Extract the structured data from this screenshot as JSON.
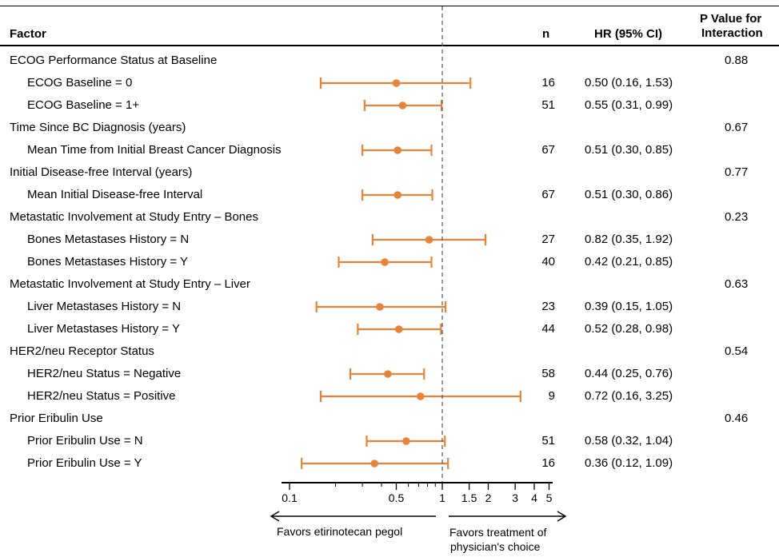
{
  "header": {
    "factor": "Factor",
    "n": "n",
    "hr": "HR (95% CI)",
    "p_line1": "P Value for",
    "p_line2": "Interaction"
  },
  "chart_data": {
    "type": "forest",
    "x_scale": "log",
    "reference_line": 1,
    "xlim": [
      0.1,
      5
    ],
    "x_ticks": [
      0.1,
      0.5,
      1,
      1.5,
      2,
      3,
      4,
      5
    ],
    "x_tick_labels": [
      "0.1",
      "0.5",
      "1",
      "1.5",
      "2",
      "3",
      "4",
      "5"
    ],
    "minor_ticks": [
      0.2,
      0.3,
      0.4,
      0.6,
      0.7,
      0.8,
      0.9
    ],
    "color": "#E8833A",
    "favors_left": "Favors etirinotecan pegol",
    "favors_right_line1": "Favors treatment of",
    "favors_right_line2": "physician's choice",
    "rows": [
      {
        "kind": "group",
        "label": "ECOG Performance Status at Baseline",
        "p": "0.88"
      },
      {
        "kind": "item",
        "label": "ECOG Baseline = 0",
        "n": "16",
        "hr_text": "0.50 (0.16, 1.53)",
        "hr": 0.5,
        "lo": 0.16,
        "hi": 1.53
      },
      {
        "kind": "item",
        "label": "ECOG Baseline = 1+",
        "n": "51",
        "hr_text": "0.55 (0.31, 0.99)",
        "hr": 0.55,
        "lo": 0.31,
        "hi": 0.99
      },
      {
        "kind": "group",
        "label": "Time Since BC Diagnosis (years)",
        "p": "0.67"
      },
      {
        "kind": "item",
        "label": "Mean Time from Initial Breast Cancer Diagnosis",
        "n": "67",
        "hr_text": "0.51 (0.30, 0.85)",
        "hr": 0.51,
        "lo": 0.3,
        "hi": 0.85
      },
      {
        "kind": "group",
        "label": "Initial Disease-free Interval (years)",
        "p": "0.77"
      },
      {
        "kind": "item",
        "label": "Mean Initial Disease-free Interval",
        "n": "67",
        "hr_text": "0.51 (0.30, 0.86)",
        "hr": 0.51,
        "lo": 0.3,
        "hi": 0.86
      },
      {
        "kind": "group",
        "label": "Metastatic Involvement at Study Entry – Bones",
        "p": "0.23"
      },
      {
        "kind": "item",
        "label": "Bones Metastases History = N",
        "n": "27",
        "hr_text": "0.82 (0.35, 1.92)",
        "hr": 0.82,
        "lo": 0.35,
        "hi": 1.92
      },
      {
        "kind": "item",
        "label": "Bones Metastases History = Y",
        "n": "40",
        "hr_text": "0.42 (0.21, 0.85)",
        "hr": 0.42,
        "lo": 0.21,
        "hi": 0.85
      },
      {
        "kind": "group",
        "label": "Metastatic Involvement at Study Entry – Liver",
        "p": "0.63"
      },
      {
        "kind": "item",
        "label": "Liver Metastases History = N",
        "n": "23",
        "hr_text": "0.39 (0.15, 1.05)",
        "hr": 0.39,
        "lo": 0.15,
        "hi": 1.05
      },
      {
        "kind": "item",
        "label": "Liver Metastases History = Y",
        "n": "44",
        "hr_text": "0.52 (0.28, 0.98)",
        "hr": 0.52,
        "lo": 0.28,
        "hi": 0.98
      },
      {
        "kind": "group",
        "label": "HER2/neu Receptor Status",
        "p": "0.54"
      },
      {
        "kind": "item",
        "label": "HER2/neu Status = Negative",
        "n": "58",
        "hr_text": "0.44 (0.25, 0.76)",
        "hr": 0.44,
        "lo": 0.25,
        "hi": 0.76
      },
      {
        "kind": "item",
        "label": "HER2/neu Status = Positive",
        "n": "9",
        "hr_text": "0.72 (0.16, 3.25)",
        "hr": 0.72,
        "lo": 0.16,
        "hi": 3.25
      },
      {
        "kind": "group",
        "label": "Prior Eribulin Use",
        "p": "0.46"
      },
      {
        "kind": "item",
        "label": "Prior Eribulin Use = N",
        "n": "51",
        "hr_text": "0.58 (0.32, 1.04)",
        "hr": 0.58,
        "lo": 0.32,
        "hi": 1.04
      },
      {
        "kind": "item",
        "label": "Prior Eribulin Use = Y",
        "n": "16",
        "hr_text": "0.36 (0.12, 1.09)",
        "hr": 0.36,
        "lo": 0.12,
        "hi": 1.09
      }
    ]
  }
}
